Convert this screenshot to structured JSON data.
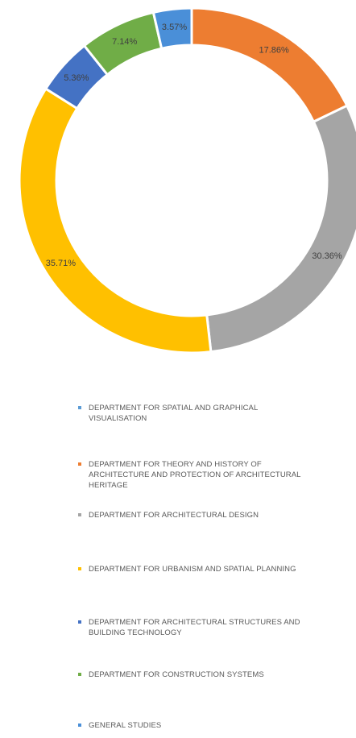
{
  "chart_data": {
    "type": "donut",
    "categories": [
      "DEPARTMENT FOR SPATIAL AND GRAPHICAL VISUALISATION",
      "DEPARTMENT FOR THEORY AND HISTORY OF ARCHITECTURE AND PROTECTION OF ARCHITECTURAL HERITAGE",
      "DEPARTMENT FOR ARCHITECTURAL DESIGN",
      "DEPARTMENT FOR URBANISM AND SPATIAL PLANNING",
      "DEPARTMENT FOR ARCHITECTURAL STRUCTURES AND BUILDING TECHNOLOGY",
      "DEPARTMENT FOR CONSTRUCTION SYSTEMS",
      "GENERAL STUDIES"
    ],
    "values": [
      0,
      17.86,
      30.36,
      35.71,
      5.36,
      7.14,
      3.57
    ],
    "data_labels": [
      "",
      "17.86%",
      "30.36%",
      "35.71%",
      "5.36%",
      "7.14%",
      "3.57%"
    ],
    "colors": [
      "#5b9bd5",
      "#ed7d31",
      "#a5a5a5",
      "#ffc000",
      "#4472c4",
      "#70ad47",
      "#4a8fd8"
    ],
    "legend_position": "bottom",
    "start_angle_deg": 0,
    "direction": "clockwise"
  }
}
